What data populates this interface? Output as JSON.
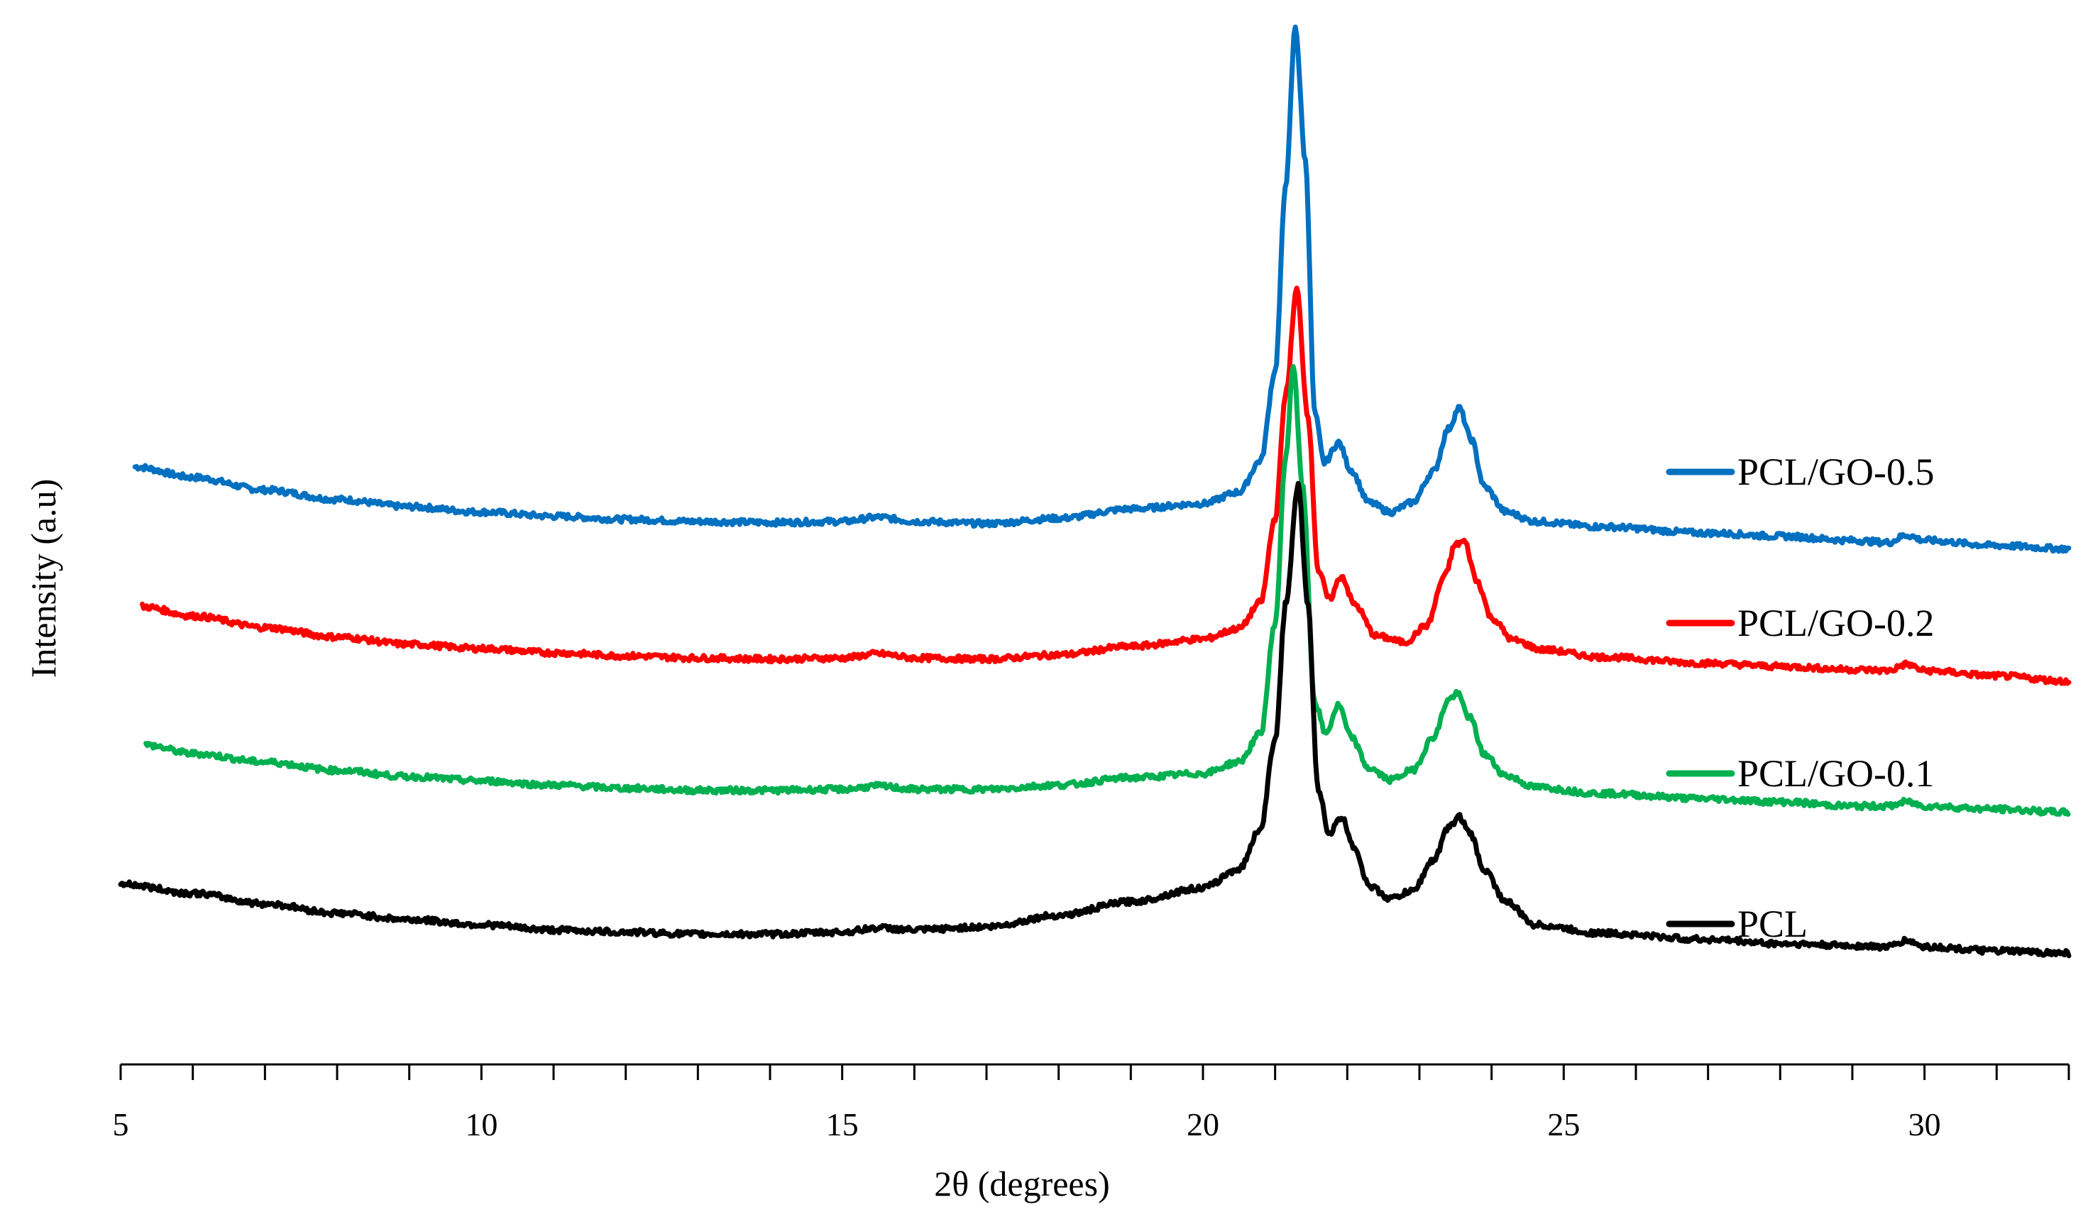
{
  "chart_data": {
    "type": "line",
    "title": "",
    "xlabel": "2θ (degrees)",
    "ylabel": "Intensity (a.u)",
    "xlim": [
      5,
      32
    ],
    "ylim": [
      0,
      100
    ],
    "x_ticks": [
      5,
      10,
      15,
      20,
      25,
      30
    ],
    "y_tick_labels": "none",
    "grid": false,
    "legend_position": "right, stacked beside each trace",
    "series": [
      {
        "name": "PCL/GO-0.5",
        "color": "#0070C0",
        "points": [
          [
            5.2,
            56.9
          ],
          [
            6,
            55.9
          ],
          [
            7,
            54.7
          ],
          [
            8,
            53.8
          ],
          [
            9,
            53.1
          ],
          [
            10,
            52.6
          ],
          [
            11,
            52.2
          ],
          [
            12,
            51.9
          ],
          [
            13,
            51.7
          ],
          [
            14,
            51.6
          ],
          [
            15,
            51.7
          ],
          [
            15.5,
            52.1
          ],
          [
            16,
            51.7
          ],
          [
            17,
            51.5
          ],
          [
            18,
            52.0
          ],
          [
            19,
            52.9
          ],
          [
            20,
            53.4
          ],
          [
            20.5,
            54.5
          ],
          [
            20.8,
            57.5
          ],
          [
            21.0,
            66.0
          ],
          [
            21.15,
            84.0
          ],
          [
            21.28,
            98.8
          ],
          [
            21.42,
            86.0
          ],
          [
            21.55,
            62.0
          ],
          [
            21.68,
            57.3
          ],
          [
            21.88,
            59.2
          ],
          [
            22.05,
            56.6
          ],
          [
            22.3,
            53.5
          ],
          [
            22.6,
            52.6
          ],
          [
            22.9,
            53.5
          ],
          [
            23.2,
            56.5
          ],
          [
            23.4,
            60.5
          ],
          [
            23.55,
            62.5
          ],
          [
            23.72,
            59.5
          ],
          [
            23.9,
            55.0
          ],
          [
            24.2,
            52.6
          ],
          [
            24.6,
            51.7
          ],
          [
            25.5,
            51.2
          ],
          [
            27,
            50.6
          ],
          [
            28,
            50.3
          ],
          [
            29,
            49.9
          ],
          [
            29.5,
            49.7
          ],
          [
            29.75,
            50.4
          ],
          [
            30,
            49.9
          ],
          [
            31,
            49.4
          ],
          [
            32,
            49.1
          ]
        ]
      },
      {
        "name": "PCL/GO-0.2",
        "color": "#FF0000",
        "points": [
          [
            5.3,
            43.6
          ],
          [
            6,
            42.7
          ],
          [
            7,
            41.6
          ],
          [
            8,
            40.7
          ],
          [
            9,
            40.0
          ],
          [
            10,
            39.6
          ],
          [
            11,
            39.2
          ],
          [
            12,
            38.9
          ],
          [
            13,
            38.7
          ],
          [
            14,
            38.6
          ],
          [
            15,
            38.7
          ],
          [
            15.5,
            39.1
          ],
          [
            16,
            38.7
          ],
          [
            17,
            38.6
          ],
          [
            18,
            39.0
          ],
          [
            19,
            39.8
          ],
          [
            20,
            40.5
          ],
          [
            20.5,
            41.5
          ],
          [
            20.8,
            44.0
          ],
          [
            21.0,
            52.0
          ],
          [
            21.15,
            64.0
          ],
          [
            21.3,
            73.8
          ],
          [
            21.45,
            62.0
          ],
          [
            21.6,
            47.0
          ],
          [
            21.75,
            44.3
          ],
          [
            21.92,
            46.5
          ],
          [
            22.1,
            43.8
          ],
          [
            22.4,
            40.8
          ],
          [
            22.8,
            40.2
          ],
          [
            23.1,
            41.8
          ],
          [
            23.35,
            46.5
          ],
          [
            23.5,
            49.5
          ],
          [
            23.62,
            49.8
          ],
          [
            23.8,
            46.0
          ],
          [
            24.0,
            42.5
          ],
          [
            24.3,
            40.4
          ],
          [
            24.7,
            39.5
          ],
          [
            25.5,
            38.8
          ],
          [
            27,
            38.2
          ],
          [
            28,
            37.9
          ],
          [
            29,
            37.6
          ],
          [
            29.5,
            37.5
          ],
          [
            29.75,
            38.1
          ],
          [
            30,
            37.5
          ],
          [
            31,
            37.0
          ],
          [
            32,
            36.5
          ]
        ]
      },
      {
        "name": "PCL/GO-0.1",
        "color": "#00B050",
        "points": [
          [
            5.35,
            30.4
          ],
          [
            6,
            29.6
          ],
          [
            7,
            28.8
          ],
          [
            8,
            28.0
          ],
          [
            9,
            27.4
          ],
          [
            10,
            27.0
          ],
          [
            11,
            26.6
          ],
          [
            12,
            26.3
          ],
          [
            13,
            26.1
          ],
          [
            14,
            26.1
          ],
          [
            15,
            26.2
          ],
          [
            15.5,
            26.5
          ],
          [
            16,
            26.2
          ],
          [
            17,
            26.2
          ],
          [
            18,
            26.6
          ],
          [
            19,
            27.3
          ],
          [
            20,
            27.7
          ],
          [
            20.5,
            28.8
          ],
          [
            20.8,
            31.5
          ],
          [
            21.0,
            42.0
          ],
          [
            21.15,
            58.0
          ],
          [
            21.25,
            66.6
          ],
          [
            21.38,
            55.0
          ],
          [
            21.55,
            34.5
          ],
          [
            21.7,
            31.5
          ],
          [
            21.88,
            34.2
          ],
          [
            22.05,
            31.2
          ],
          [
            22.3,
            28.2
          ],
          [
            22.6,
            27.1
          ],
          [
            22.9,
            28.0
          ],
          [
            23.2,
            31.2
          ],
          [
            23.4,
            34.7
          ],
          [
            23.52,
            35.3
          ],
          [
            23.7,
            33.0
          ],
          [
            23.9,
            29.5
          ],
          [
            24.2,
            27.5
          ],
          [
            24.6,
            26.4
          ],
          [
            25.5,
            25.8
          ],
          [
            27,
            25.3
          ],
          [
            28,
            25.0
          ],
          [
            29,
            24.6
          ],
          [
            29.5,
            24.6
          ],
          [
            29.75,
            25.0
          ],
          [
            30,
            24.6
          ],
          [
            31,
            24.3
          ],
          [
            32,
            24.0
          ]
        ]
      },
      {
        "name": "PCL",
        "color": "#000000",
        "points": [
          [
            5,
            17.2
          ],
          [
            6,
            16.3
          ],
          [
            7,
            15.3
          ],
          [
            8,
            14.4
          ],
          [
            9,
            13.8
          ],
          [
            10,
            13.3
          ],
          [
            11,
            12.8
          ],
          [
            12,
            12.6
          ],
          [
            13,
            12.4
          ],
          [
            14,
            12.4
          ],
          [
            15,
            12.6
          ],
          [
            15.5,
            13.0
          ],
          [
            16,
            12.8
          ],
          [
            17,
            13.1
          ],
          [
            18,
            14.2
          ],
          [
            19,
            15.5
          ],
          [
            20,
            16.8
          ],
          [
            20.5,
            18.6
          ],
          [
            20.8,
            22.5
          ],
          [
            21.0,
            31.0
          ],
          [
            21.15,
            44.0
          ],
          [
            21.32,
            55.1
          ],
          [
            21.45,
            44.0
          ],
          [
            21.6,
            26.0
          ],
          [
            21.75,
            22.0
          ],
          [
            21.92,
            23.5
          ],
          [
            22.1,
            20.7
          ],
          [
            22.3,
            17.0
          ],
          [
            22.6,
            15.8
          ],
          [
            22.9,
            16.5
          ],
          [
            23.2,
            19.5
          ],
          [
            23.4,
            22.5
          ],
          [
            23.55,
            23.6
          ],
          [
            23.7,
            22.0
          ],
          [
            23.9,
            18.5
          ],
          [
            24.2,
            15.5
          ],
          [
            24.6,
            13.3
          ],
          [
            25.5,
            12.5
          ],
          [
            27,
            11.9
          ],
          [
            28,
            11.5
          ],
          [
            29,
            11.3
          ],
          [
            29.5,
            11.2
          ],
          [
            29.75,
            11.8
          ],
          [
            30,
            11.2
          ],
          [
            31,
            10.8
          ],
          [
            32,
            10.6
          ]
        ]
      }
    ]
  }
}
